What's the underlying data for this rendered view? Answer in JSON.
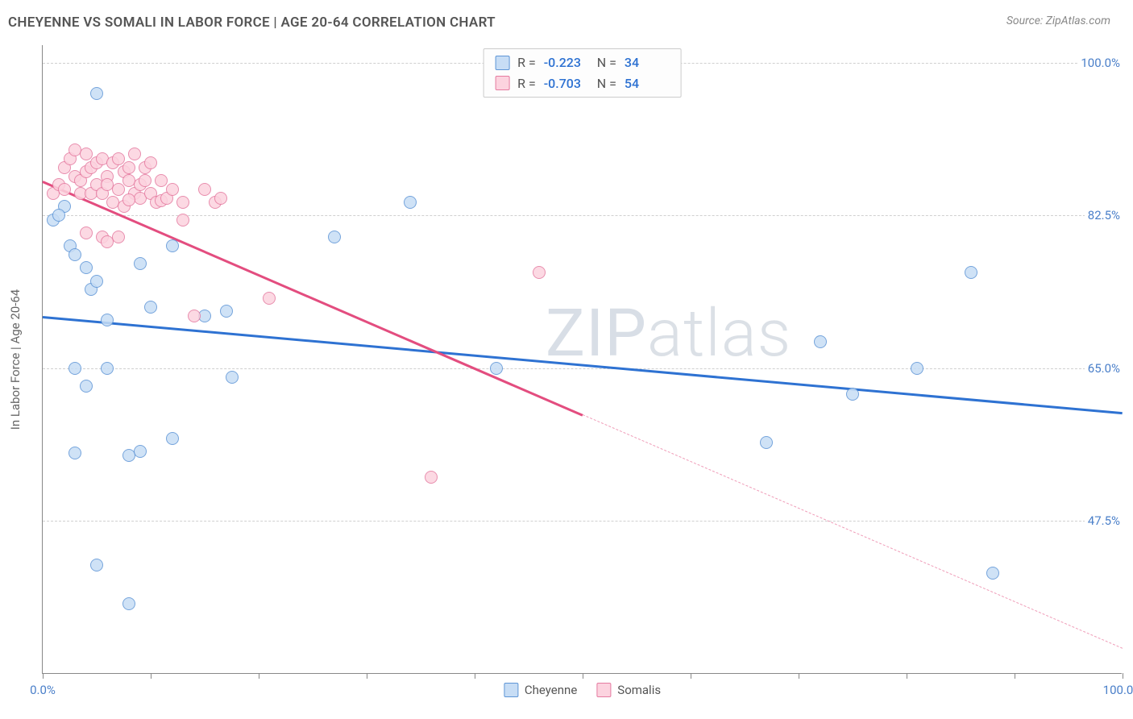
{
  "title": "CHEYENNE VS SOMALI IN LABOR FORCE | AGE 20-64 CORRELATION CHART",
  "source": "Source: ZipAtlas.com",
  "watermark_bold": "ZIP",
  "watermark_thin": "atlas",
  "chart": {
    "type": "scatter",
    "background_color": "#ffffff",
    "grid_color": "#d0d0d0",
    "axis_color": "#888888",
    "ylabel": "In Labor Force | Age 20-64",
    "ylabel_fontsize": 15,
    "ylabel_color": "#666666",
    "xlim": [
      0,
      100
    ],
    "ylim": [
      30,
      102
    ],
    "ytick_values": [
      47.5,
      65.0,
      82.5,
      100.0
    ],
    "ytick_labels": [
      "47.5%",
      "65.0%",
      "82.5%",
      "100.0%"
    ],
    "ytick_color": "#4a7fc9",
    "xtick_values": [
      0,
      10,
      20,
      30,
      40,
      50,
      60,
      70,
      80,
      90,
      100
    ],
    "xtick_labels_shown": {
      "0": "0.0%",
      "100": "100.0%"
    },
    "xtick_color": "#4a7fc9",
    "marker_radius": 8,
    "marker_border_width": 1.2,
    "series": [
      {
        "name": "Cheyenne",
        "fill_color": "#c7ddf5",
        "border_color": "#5e95d6",
        "trend_color": "#2e72d2",
        "trend_width": 2.5,
        "correlation_R": "-0.223",
        "N": "34",
        "trend": {
          "x1": 0,
          "y1": 71.0,
          "x2": 100,
          "y2": 60.0,
          "solid_to_x": 100
        },
        "points": [
          [
            1,
            82.0
          ],
          [
            2,
            83.5
          ],
          [
            1.5,
            82.5
          ],
          [
            2.5,
            79.0
          ],
          [
            3,
            78.0
          ],
          [
            4,
            76.5
          ],
          [
            5,
            96.5
          ],
          [
            3,
            65.0
          ],
          [
            6,
            65.0
          ],
          [
            4,
            63.0
          ],
          [
            4.5,
            74.0
          ],
          [
            5,
            75.0
          ],
          [
            6,
            70.5
          ],
          [
            9,
            77.0
          ],
          [
            10,
            72.0
          ],
          [
            12,
            79.0
          ],
          [
            8,
            55.0
          ],
          [
            9,
            55.5
          ],
          [
            12,
            57.0
          ],
          [
            3,
            55.3
          ],
          [
            5,
            42.5
          ],
          [
            8,
            38.0
          ],
          [
            15,
            71.0
          ],
          [
            17,
            71.5
          ],
          [
            17.5,
            64.0
          ],
          [
            27,
            80.0
          ],
          [
            34,
            84.0
          ],
          [
            42,
            65.0
          ],
          [
            67,
            56.5
          ],
          [
            72,
            68.0
          ],
          [
            75,
            62.0
          ],
          [
            81,
            65.0
          ],
          [
            86,
            76.0
          ],
          [
            88,
            41.5
          ]
        ]
      },
      {
        "name": "Somalis",
        "fill_color": "#fcd3df",
        "border_color": "#e57ba0",
        "trend_color": "#e34d7f",
        "trend_width": 2.5,
        "correlation_R": "-0.703",
        "N": "54",
        "trend": {
          "x1": 0,
          "y1": 86.5,
          "x2": 100,
          "y2": 33.0,
          "solid_to_x": 50
        },
        "points": [
          [
            1,
            85.0
          ],
          [
            1.5,
            86.0
          ],
          [
            2,
            85.5
          ],
          [
            2,
            88.0
          ],
          [
            2.5,
            89.0
          ],
          [
            3,
            87.0
          ],
          [
            3,
            90.0
          ],
          [
            3.5,
            86.5
          ],
          [
            3.5,
            85.0
          ],
          [
            4,
            87.5
          ],
          [
            4,
            89.5
          ],
          [
            4.5,
            88.0
          ],
          [
            4.5,
            85.0
          ],
          [
            5,
            86.0
          ],
          [
            5,
            88.5
          ],
          [
            5.5,
            89.0
          ],
          [
            5.5,
            85.0
          ],
          [
            6,
            87.0
          ],
          [
            6,
            86.0
          ],
          [
            6.5,
            88.5
          ],
          [
            6.5,
            84.0
          ],
          [
            7,
            89.0
          ],
          [
            7,
            85.5
          ],
          [
            7.5,
            87.5
          ],
          [
            7.5,
            83.5
          ],
          [
            8,
            86.5
          ],
          [
            8,
            88.0
          ],
          [
            8.5,
            85.0
          ],
          [
            8.5,
            89.5
          ],
          [
            9,
            86.0
          ],
          [
            9,
            84.5
          ],
          [
            9.5,
            88.0
          ],
          [
            9.5,
            86.5
          ],
          [
            10,
            85.0
          ],
          [
            10,
            88.5
          ],
          [
            10.5,
            84.0
          ],
          [
            11,
            86.5
          ],
          [
            11,
            84.2
          ],
          [
            4,
            80.5
          ],
          [
            5.5,
            80.0
          ],
          [
            6,
            79.5
          ],
          [
            7,
            80.0
          ],
          [
            11.5,
            84.5
          ],
          [
            12,
            85.5
          ],
          [
            13,
            84.0
          ],
          [
            13,
            82.0
          ],
          [
            14,
            71.0
          ],
          [
            15,
            85.5
          ],
          [
            16,
            84.0
          ],
          [
            16.5,
            84.5
          ],
          [
            21,
            73.0
          ],
          [
            36,
            52.5
          ],
          [
            46,
            76.0
          ],
          [
            8,
            84.3
          ]
        ]
      }
    ],
    "legend_position": "bottom",
    "stats_box_position": "top-center"
  }
}
